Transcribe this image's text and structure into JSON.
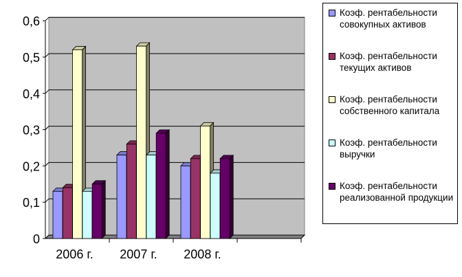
{
  "chart_data": {
    "type": "bar",
    "categories": [
      "2006 г.",
      "2007 г.",
      "2008 г.",
      ""
    ],
    "ylim": [
      0,
      0.6
    ],
    "yticks": [
      "0",
      "0,1",
      "0,2",
      "0,3",
      "0,4",
      "0,5",
      "0,6"
    ],
    "grid": true,
    "legend_position": "right",
    "series": [
      {
        "name": "Коэф. рентабельности совокупных активов",
        "color": "#9999FF",
        "values": [
          0.13,
          0.23,
          0.2,
          null
        ]
      },
      {
        "name": "Коэф. рентабельности текущих активов",
        "color": "#993366",
        "values": [
          0.14,
          0.26,
          0.22,
          null
        ]
      },
      {
        "name": "Коэф. рентабельности собственного капитала",
        "color": "#FFFFCC",
        "values": [
          0.52,
          0.53,
          0.31,
          null
        ]
      },
      {
        "name": "Коэф. рентабельности выручки",
        "color": "#CCFFFF",
        "values": [
          0.13,
          0.23,
          0.18,
          null
        ]
      },
      {
        "name": "Коэф. рентабельности реализованной продукции",
        "color": "#660066",
        "values": [
          0.15,
          0.29,
          0.22,
          null
        ]
      }
    ]
  }
}
